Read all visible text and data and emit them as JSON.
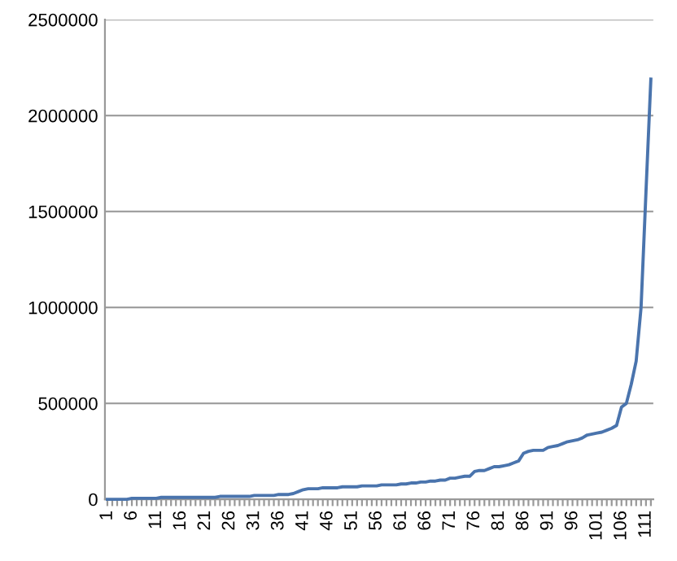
{
  "chart_data": {
    "type": "line",
    "categories": [
      "1",
      null,
      null,
      null,
      null,
      "6",
      null,
      null,
      null,
      null,
      "11",
      null,
      null,
      null,
      null,
      "16",
      null,
      null,
      null,
      null,
      "21",
      null,
      null,
      null,
      null,
      "26",
      null,
      null,
      null,
      null,
      "31",
      null,
      null,
      null,
      null,
      "36",
      null,
      null,
      null,
      null,
      "41",
      null,
      null,
      null,
      null,
      "46",
      null,
      null,
      null,
      null,
      "51",
      null,
      null,
      null,
      null,
      "56",
      null,
      null,
      null,
      null,
      "61",
      null,
      null,
      null,
      null,
      "66",
      null,
      null,
      null,
      null,
      "71",
      null,
      null,
      null,
      null,
      "76",
      null,
      null,
      null,
      null,
      "81",
      null,
      null,
      null,
      null,
      "86",
      null,
      null,
      null,
      null,
      "91",
      null,
      null,
      null,
      null,
      "96",
      null,
      null,
      null,
      null,
      "101",
      null,
      null,
      null,
      null,
      "106",
      null,
      null,
      null,
      null,
      "111",
      null
    ],
    "series": [
      {
        "color": "#4a74ad",
        "values": [
          0,
          0,
          0,
          0,
          0,
          5000,
          5000,
          5000,
          5000,
          5000,
          5000,
          10000,
          10000,
          10000,
          10000,
          10000,
          10000,
          10000,
          10000,
          10000,
          10000,
          10000,
          10000,
          15000,
          15000,
          15000,
          15000,
          15000,
          15000,
          15000,
          20000,
          20000,
          20000,
          20000,
          20000,
          25000,
          25000,
          25000,
          30000,
          40000,
          50000,
          55000,
          55000,
          55000,
          60000,
          60000,
          60000,
          60000,
          65000,
          65000,
          65000,
          65000,
          70000,
          70000,
          70000,
          70000,
          75000,
          75000,
          75000,
          75000,
          80000,
          80000,
          85000,
          85000,
          90000,
          90000,
          95000,
          95000,
          100000,
          100000,
          110000,
          110000,
          115000,
          120000,
          120000,
          145000,
          150000,
          150000,
          160000,
          170000,
          170000,
          175000,
          180000,
          190000,
          200000,
          240000,
          250000,
          255000,
          255000,
          255000,
          270000,
          275000,
          280000,
          290000,
          300000,
          305000,
          310000,
          320000,
          335000,
          340000,
          345000,
          350000,
          360000,
          370000,
          385000,
          480000,
          500000,
          600000,
          720000,
          1000000,
          1600000,
          2190000
        ]
      }
    ],
    "ylim": [
      0,
      2500000
    ],
    "yticks": [
      0,
      500000,
      1000000,
      1500000,
      2000000,
      2500000
    ],
    "grid": "y",
    "legend": false,
    "marker": "none",
    "line_style": "solid"
  }
}
